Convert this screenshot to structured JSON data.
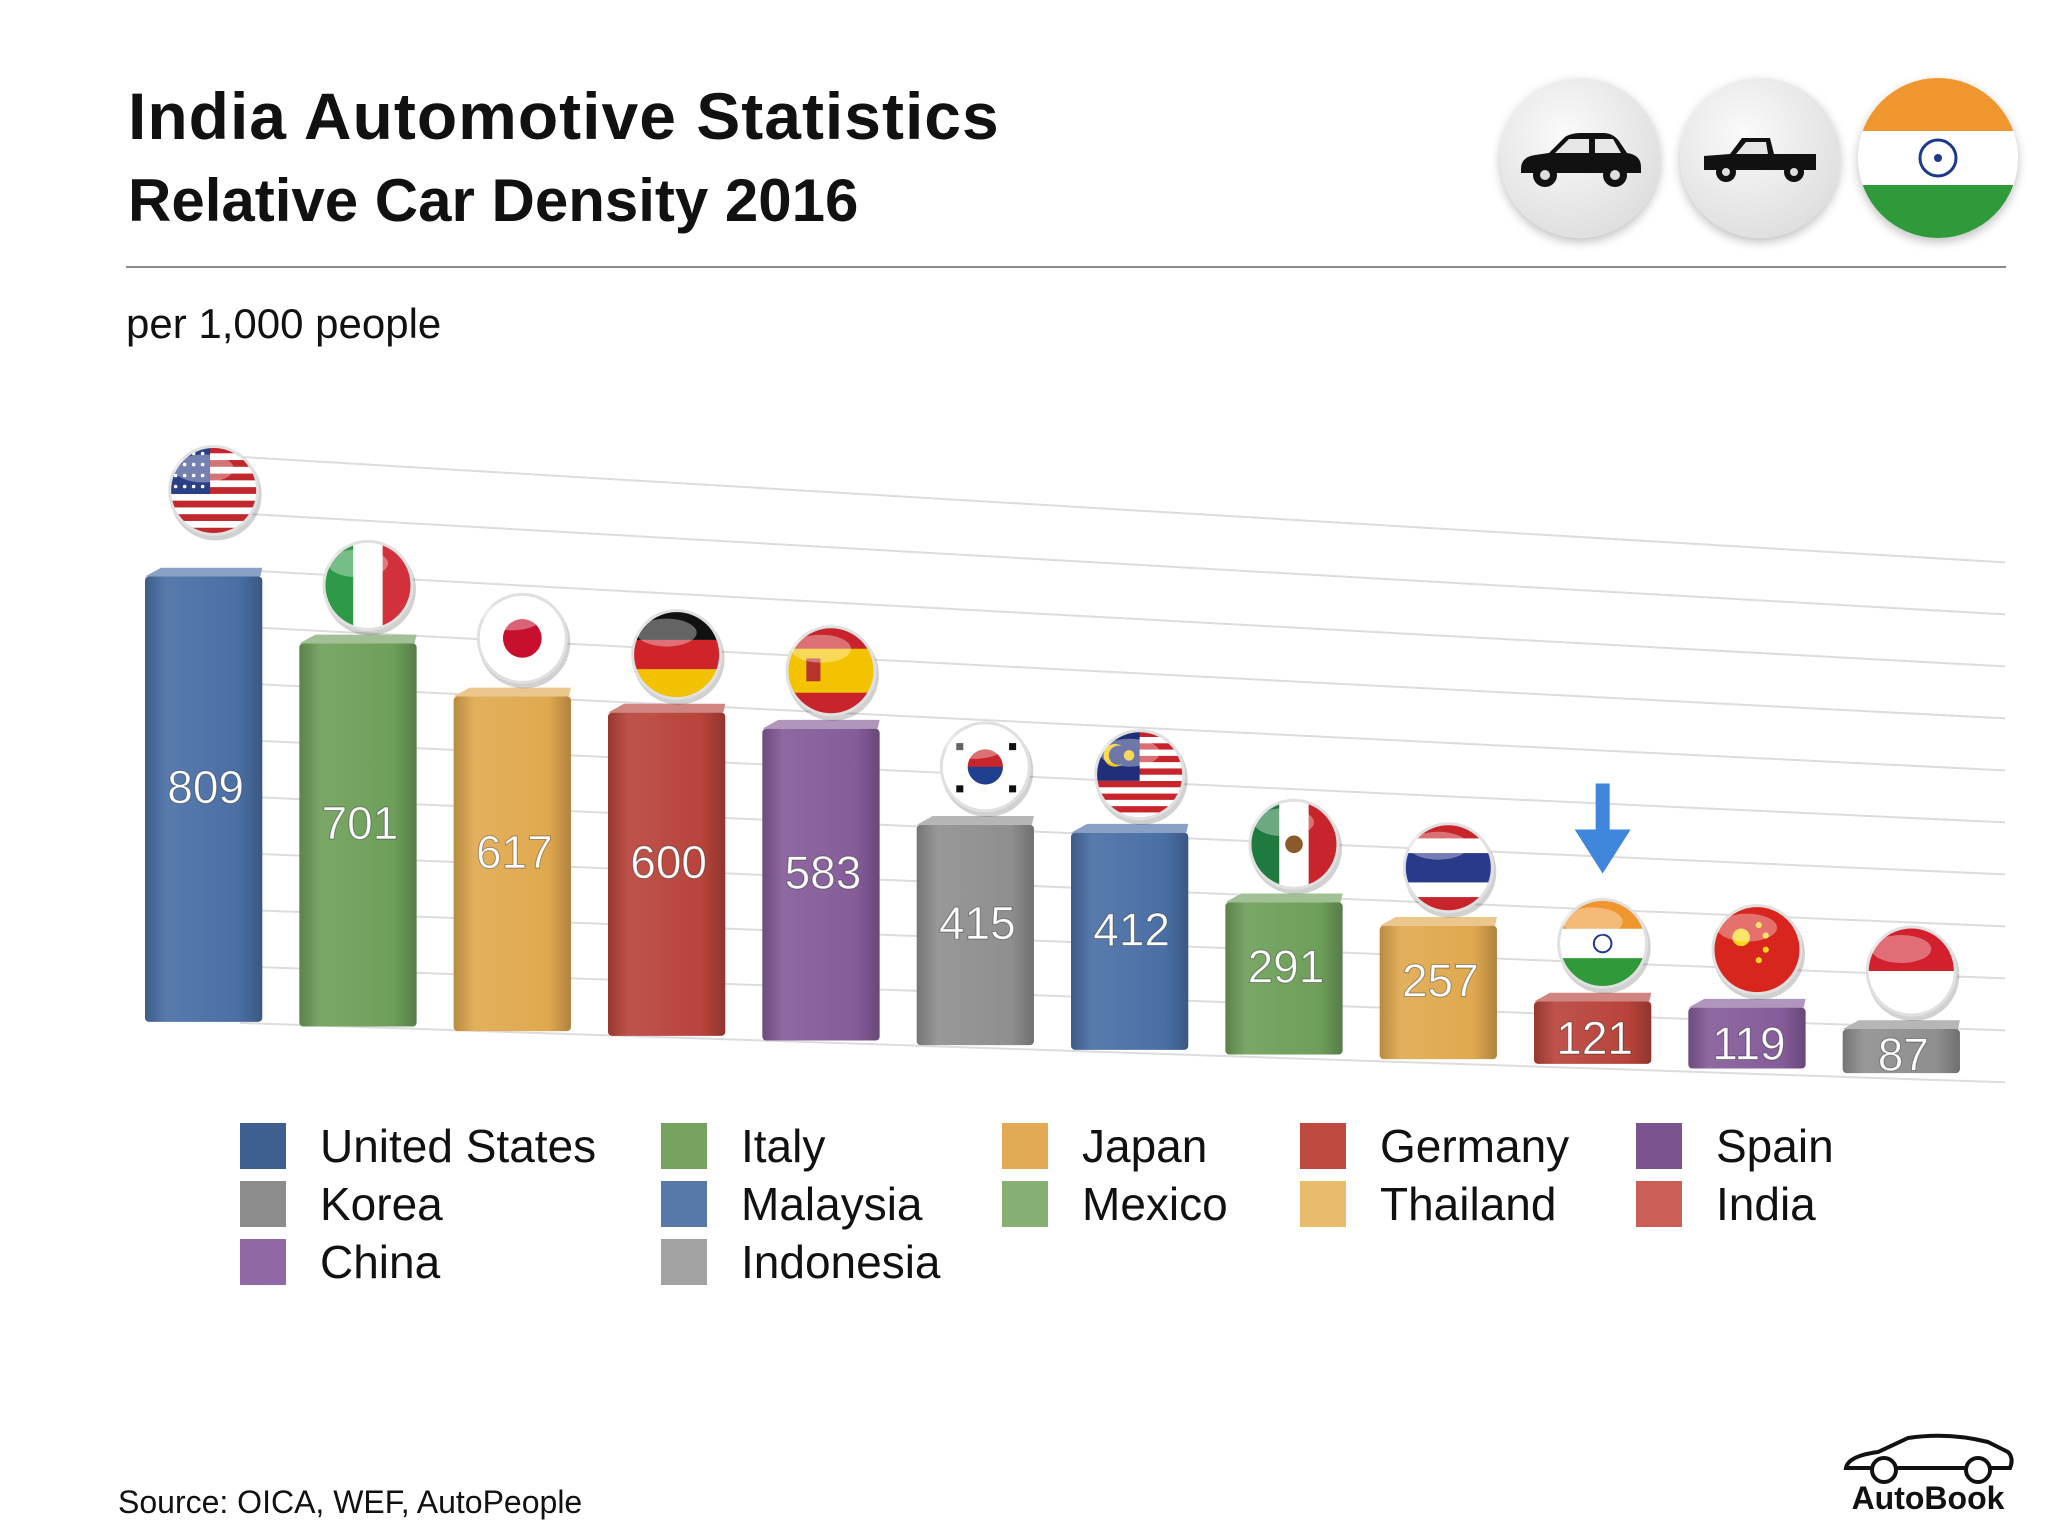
{
  "header": {
    "title": "India Automotive Statistics",
    "subtitle": "Relative Car Density 2016",
    "icons": [
      "sedan-icon",
      "pickup-truck-icon",
      "india-flag-icon"
    ]
  },
  "unit_label": "per 1,000 people",
  "chart_data": {
    "type": "bar",
    "title": "India Automotive Statistics",
    "subtitle": "Relative Car Density 2016",
    "ylabel": "per 1,000 people",
    "xlabel": "",
    "ylim": [
      0,
      1000
    ],
    "grid": true,
    "legend": "bottom",
    "categories": [
      "United States",
      "Italy",
      "Japan",
      "Germany",
      "Spain",
      "Korea",
      "Malaysia",
      "Mexico",
      "Thailand",
      "India",
      "China",
      "Indonesia"
    ],
    "values": [
      809,
      701,
      617,
      600,
      583,
      415,
      412,
      291,
      257,
      121,
      119,
      87
    ],
    "labels": [
      "809",
      "701",
      "617",
      "600",
      "583",
      "415",
      "412",
      "291",
      "257",
      "121",
      "119",
      "87"
    ],
    "colors": [
      "#4a6fa5",
      "#6e9f5a",
      "#e0a94f",
      "#b8443b",
      "#855c99",
      "#8f8f8f",
      "#4a6fa5",
      "#6e9f5a",
      "#e0a94f",
      "#b8443b",
      "#855c99",
      "#8f8f8f"
    ],
    "highlight": {
      "category": "India",
      "marker": "down-arrow",
      "color": "#3f86dc"
    },
    "flags": [
      "usa-flag-icon",
      "italy-flag-icon",
      "japan-flag-icon",
      "germany-flag-icon",
      "spain-flag-icon",
      "korea-flag-icon",
      "malaysia-flag-icon",
      "mexico-flag-icon",
      "thailand-flag-icon",
      "india-flag-icon",
      "china-flag-icon",
      "indonesia-flag-icon"
    ]
  },
  "legend": {
    "items": [
      {
        "label": "United States",
        "color": "#3f5f91"
      },
      {
        "label": "Italy",
        "color": "#76a35f"
      },
      {
        "label": "Japan",
        "color": "#e3aa55"
      },
      {
        "label": "Germany",
        "color": "#bf4a40"
      },
      {
        "label": "Spain",
        "color": "#7a5390"
      },
      {
        "label": "Korea",
        "color": "#8c8c8c"
      },
      {
        "label": "Malaysia",
        "color": "#5778a8"
      },
      {
        "label": "Mexico",
        "color": "#86b071"
      },
      {
        "label": "Thailand",
        "color": "#e8bb6d"
      },
      {
        "label": "India",
        "color": "#cc5f57"
      },
      {
        "label": "China",
        "color": "#9068a5"
      },
      {
        "label": "Indonesia",
        "color": "#a3a3a3"
      }
    ]
  },
  "footer": {
    "source": "Source:  OICA, WEF, AutoPeople",
    "brand": "AutoBook"
  }
}
